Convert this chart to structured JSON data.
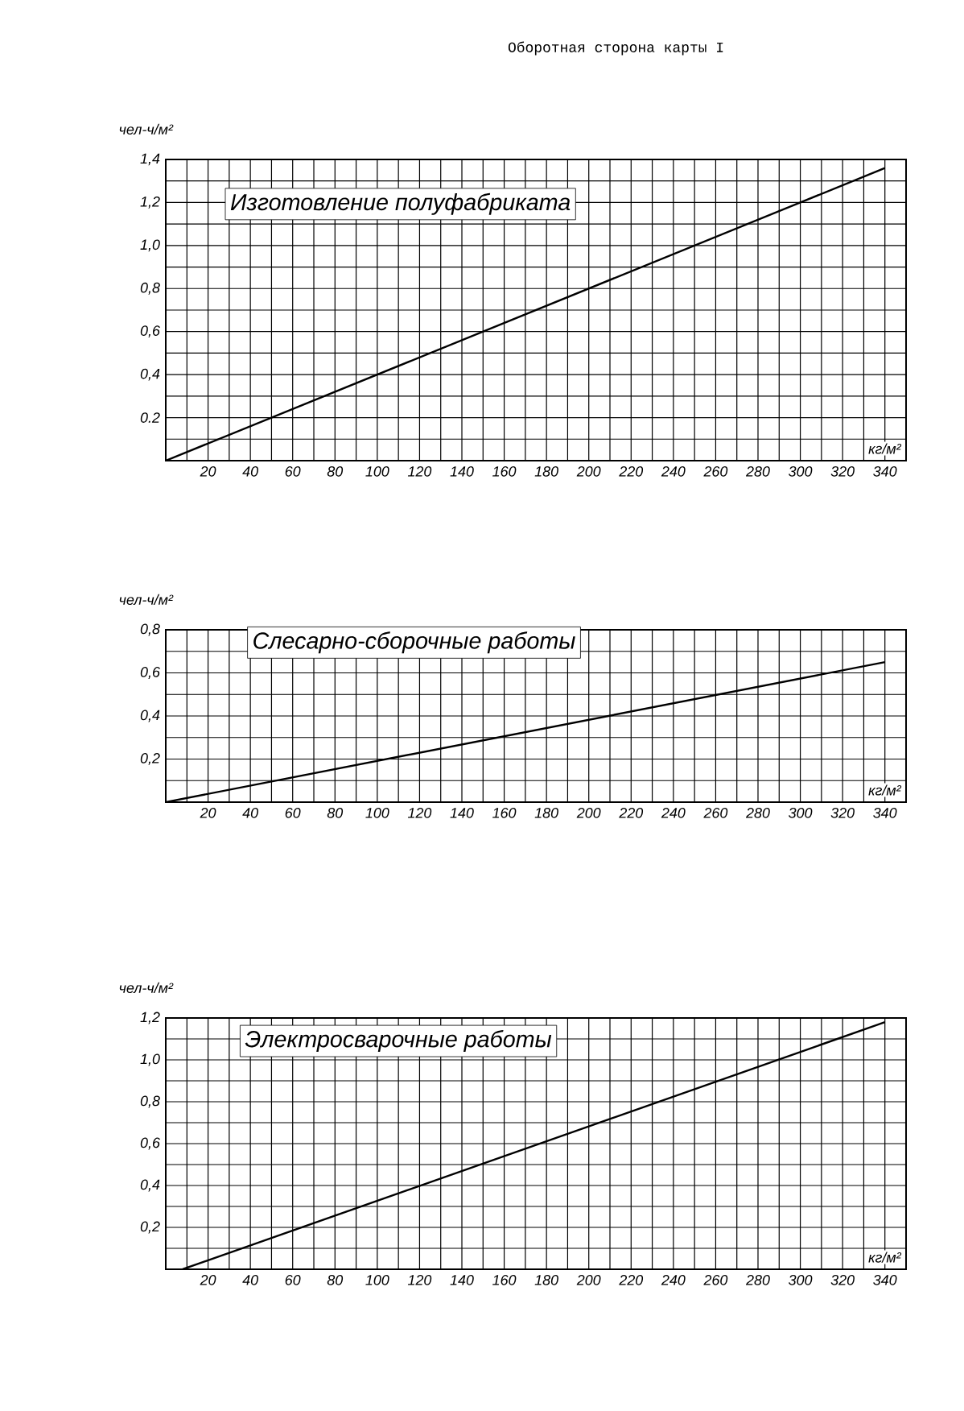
{
  "chart_data": [
    {
      "type": "line",
      "title": "Изготовление полуфабриката",
      "xlabel": "кг/м²",
      "ylabel": "чел-ч/м²",
      "annotations": [
        "Оборотная сторона карты I"
      ],
      "grid": true,
      "marker": "none",
      "line_style": "solid",
      "series": [
        {
          "color": "#000000",
          "x": [
            0,
            340
          ],
          "values": [
            0,
            1.36
          ]
        }
      ],
      "xlim": [
        0,
        350
      ],
      "ylim": [
        0,
        1.4
      ],
      "xticks": [
        {
          "value": 10,
          "label": null
        },
        20,
        {
          "value": 30,
          "label": null
        },
        40,
        {
          "value": 50,
          "label": null
        },
        60,
        {
          "value": 70,
          "label": null
        },
        80,
        {
          "value": 90,
          "label": null
        },
        100,
        {
          "value": 110,
          "label": null
        },
        120,
        {
          "value": 130,
          "label": null
        },
        140,
        {
          "value": 150,
          "label": null
        },
        160,
        {
          "value": 170,
          "label": null
        },
        180,
        {
          "value": 190,
          "label": null
        },
        200,
        {
          "value": 210,
          "label": null
        },
        220,
        {
          "value": 230,
          "label": null
        },
        240,
        {
          "value": 250,
          "label": null
        },
        260,
        {
          "value": 270,
          "label": null
        },
        280,
        {
          "value": 290,
          "label": null
        },
        300,
        {
          "value": 310,
          "label": null
        },
        320,
        {
          "value": 330,
          "label": null
        },
        340
      ],
      "yticks": [
        {
          "value": 0.1,
          "label": null
        },
        0.2,
        {
          "value": 0.3,
          "label": null
        },
        {
          "value": 0.4,
          "label": "0,4"
        },
        {
          "value": 0.5,
          "label": null
        },
        {
          "value": 0.6,
          "label": "0,6"
        },
        {
          "value": 0.7,
          "label": null
        },
        {
          "value": 0.8,
          "label": "0,8"
        },
        {
          "value": 0.9,
          "label": null
        },
        {
          "value": 1.0,
          "label": "1,0"
        },
        {
          "value": 1.1,
          "label": null
        },
        {
          "value": 1.2,
          "label": "1,2"
        },
        {
          "value": 1.3,
          "label": null
        },
        {
          "value": 1.4,
          "label": "1,4"
        }
      ]
    },
    {
      "type": "line",
      "title": "Слесарно-сборочные работы",
      "xlabel": "кг/м²",
      "ylabel": "чел-ч/м²",
      "grid": true,
      "marker": "none",
      "line_style": "solid",
      "series": [
        {
          "color": "#000000",
          "x": [
            0,
            340
          ],
          "values": [
            0,
            0.65
          ]
        }
      ],
      "xlim": [
        0,
        350
      ],
      "ylim": [
        0,
        0.8
      ],
      "xticks": [
        {
          "value": 10,
          "label": null
        },
        20,
        {
          "value": 30,
          "label": null
        },
        40,
        {
          "value": 50,
          "label": null
        },
        60,
        {
          "value": 70,
          "label": null
        },
        80,
        {
          "value": 90,
          "label": null
        },
        100,
        {
          "value": 110,
          "label": null
        },
        120,
        {
          "value": 130,
          "label": null
        },
        140,
        {
          "value": 150,
          "label": null
        },
        160,
        {
          "value": 170,
          "label": null
        },
        180,
        {
          "value": 190,
          "label": null
        },
        200,
        {
          "value": 210,
          "label": null
        },
        220,
        {
          "value": 230,
          "label": null
        },
        240,
        {
          "value": 250,
          "label": null
        },
        260,
        {
          "value": 270,
          "label": null
        },
        280,
        {
          "value": 290,
          "label": null
        },
        300,
        {
          "value": 310,
          "label": null
        },
        320,
        {
          "value": 330,
          "label": null
        },
        340
      ],
      "yticks": [
        {
          "value": 0.1,
          "label": null
        },
        {
          "value": 0.2,
          "label": "0,2"
        },
        {
          "value": 0.3,
          "label": null
        },
        {
          "value": 0.4,
          "label": "0,4"
        },
        {
          "value": 0.5,
          "label": null
        },
        {
          "value": 0.6,
          "label": "0,6"
        },
        {
          "value": 0.7,
          "label": null
        },
        {
          "value": 0.8,
          "label": "0,8"
        }
      ]
    },
    {
      "type": "line",
      "title": "Электросварочные работы",
      "xlabel": "кг/м²",
      "ylabel": "чел-ч/м²",
      "grid": true,
      "marker": "none",
      "line_style": "solid",
      "series": [
        {
          "color": "#000000",
          "x": [
            8,
            340
          ],
          "values": [
            0,
            1.18
          ]
        }
      ],
      "xlim": [
        0,
        350
      ],
      "ylim": [
        0,
        1.2
      ],
      "xticks": [
        {
          "value": 10,
          "label": null
        },
        20,
        {
          "value": 30,
          "label": null
        },
        40,
        {
          "value": 50,
          "label": null
        },
        60,
        {
          "value": 70,
          "label": null
        },
        80,
        {
          "value": 90,
          "label": null
        },
        100,
        {
          "value": 110,
          "label": null
        },
        120,
        {
          "value": 130,
          "label": null
        },
        140,
        {
          "value": 150,
          "label": null
        },
        160,
        {
          "value": 170,
          "label": null
        },
        180,
        {
          "value": 190,
          "label": null
        },
        200,
        {
          "value": 210,
          "label": null
        },
        220,
        {
          "value": 230,
          "label": null
        },
        240,
        {
          "value": 250,
          "label": null
        },
        260,
        {
          "value": 270,
          "label": null
        },
        280,
        {
          "value": 290,
          "label": null
        },
        300,
        {
          "value": 310,
          "label": null
        },
        320,
        {
          "value": 330,
          "label": null
        },
        340
      ],
      "yticks": [
        {
          "value": 0.1,
          "label": null
        },
        {
          "value": 0.2,
          "label": "0,2"
        },
        {
          "value": 0.3,
          "label": null
        },
        {
          "value": 0.4,
          "label": "0,4"
        },
        {
          "value": 0.5,
          "label": null
        },
        {
          "value": 0.6,
          "label": "0,6"
        },
        {
          "value": 0.7,
          "label": null
        },
        {
          "value": 0.8,
          "label": "0,8"
        },
        {
          "value": 0.9,
          "label": null
        },
        {
          "value": 1.0,
          "label": "1,0"
        },
        {
          "value": 1.1,
          "label": null
        },
        {
          "value": 1.2,
          "label": "1,2"
        }
      ]
    }
  ]
}
